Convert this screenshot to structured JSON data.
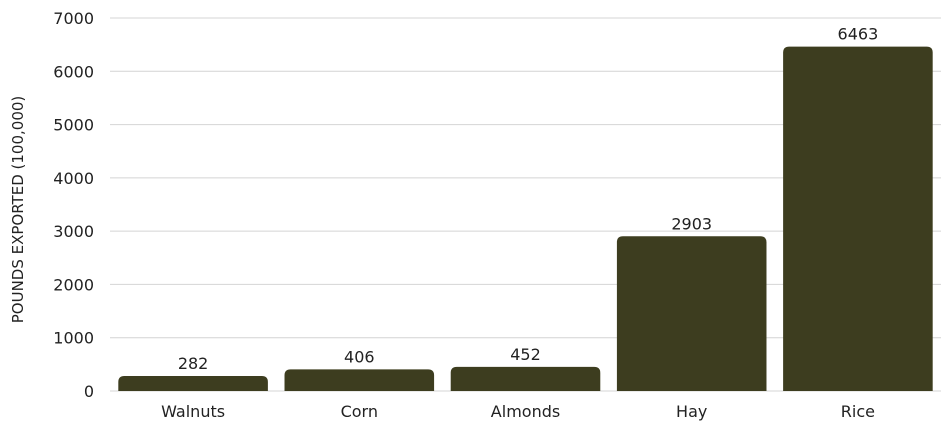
{
  "chart_data": {
    "type": "bar",
    "title": "",
    "xlabel": "",
    "ylabel": "POUNDS EXPORTED (100,000)",
    "categories": [
      "Walnuts",
      "Corn",
      "Almonds",
      "Hay",
      "Rice"
    ],
    "values": [
      282,
      406,
      452,
      2903,
      6463
    ],
    "ylim": [
      0,
      7000
    ],
    "yticks": [
      0,
      1000,
      2000,
      3000,
      4000,
      5000,
      6000,
      7000
    ],
    "grid": true,
    "legend": "none",
    "bar_color": "#3d3d1f",
    "data_labels": true
  }
}
